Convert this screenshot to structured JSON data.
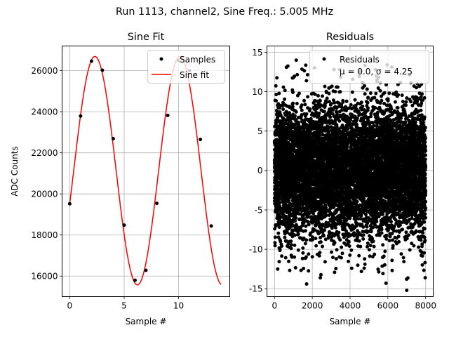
{
  "suptitle": "Run 1113, channel2, Sine Freq.: 5.005 MHz",
  "colors": {
    "samples": "#000000",
    "fit": "#ff0000",
    "grid": "#b0b0b0",
    "axes": "#000000"
  },
  "chart_data": [
    {
      "type": "scatter",
      "title": "Sine Fit",
      "xlabel": "Sample #",
      "ylabel": "ADC Counts",
      "xlim": [
        -0.7,
        14.7
      ],
      "ylim": [
        15000,
        27200
      ],
      "xticks": [
        0,
        5,
        10
      ],
      "yticks": [
        16000,
        18000,
        20000,
        22000,
        24000,
        26000
      ],
      "grid": true,
      "legend_position": "top-right",
      "series": [
        {
          "name": "Samples",
          "kind": "points",
          "x": [
            0,
            1,
            2,
            3,
            4,
            5,
            6,
            7,
            8,
            9,
            10,
            11,
            12,
            13
          ],
          "y": [
            19520,
            23790,
            26460,
            26020,
            22690,
            18480,
            15800,
            16280,
            19540,
            23820,
            26490,
            26000,
            22650,
            18440
          ]
        },
        {
          "name": "Sine fit",
          "kind": "line",
          "model": "offset + amplitude * sin(2*pi*frequency*x + phase)",
          "offset": 21130,
          "amplitude": 5560,
          "frequency_cycles_per_sample": 0.1282,
          "phase_rad": -0.295,
          "x_range": [
            0,
            13.9
          ]
        }
      ]
    },
    {
      "type": "scatter",
      "title": "Residuals",
      "xlabel": "Sample #",
      "xlim": [
        -400,
        8400
      ],
      "ylim": [
        -16,
        15.8
      ],
      "xticks": [
        0,
        2000,
        4000,
        6000,
        8000
      ],
      "yticks": [
        -15,
        -10,
        -5,
        0,
        5,
        10,
        15
      ],
      "grid": true,
      "legend_position": "top-right",
      "series": [
        {
          "name": "Residuals",
          "kind": "points",
          "n_points": 8000,
          "x_range": [
            0,
            7999
          ],
          "mean": 0.0,
          "std": 4.25,
          "extremes": [
            {
              "x": 1150,
              "y": 14.0
            },
            {
              "x": 1700,
              "y": -14.4
            },
            {
              "x": 7000,
              "y": -15.2
            },
            {
              "x": 5900,
              "y": -14.3
            },
            {
              "x": 4600,
              "y": -12.8
            }
          ]
        }
      ],
      "legend_stats_text": "μ = 0.0, σ = 4.25"
    }
  ]
}
